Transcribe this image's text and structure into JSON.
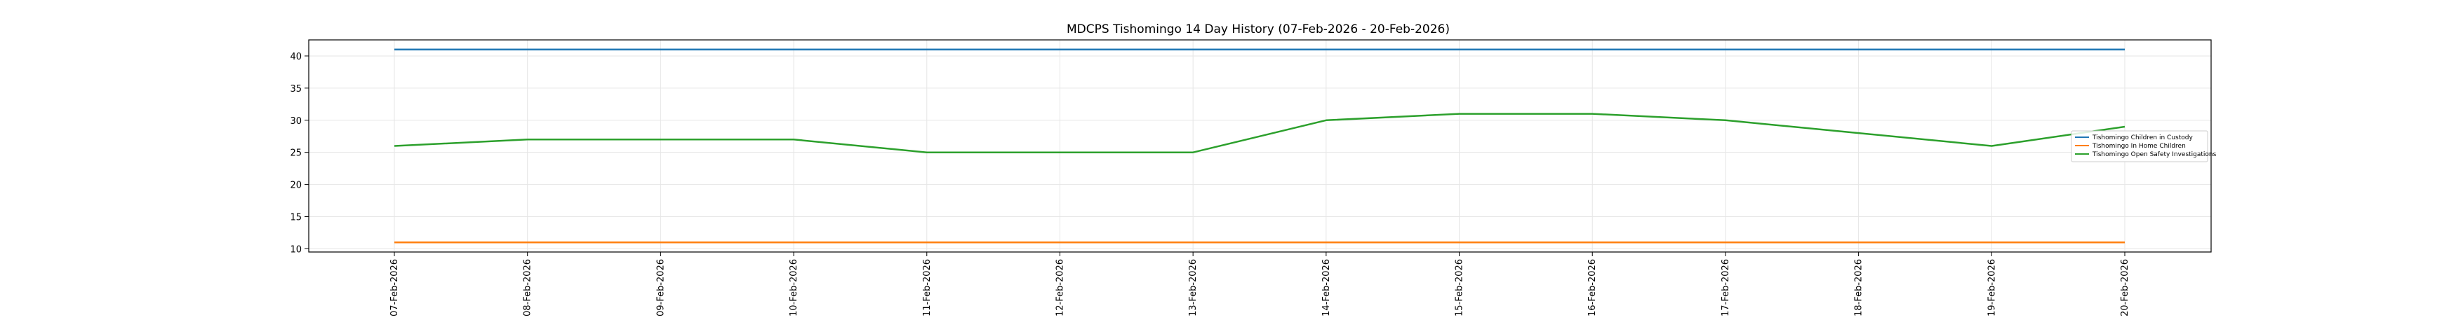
{
  "chart_data": {
    "type": "line",
    "title": "MDCPS Tishomingo 14 Day History (07-Feb-2026 - 20-Feb-2026)",
    "xlabel": "",
    "ylabel": "",
    "categories": [
      "07-Feb-2026",
      "08-Feb-2026",
      "09-Feb-2026",
      "10-Feb-2026",
      "11-Feb-2026",
      "12-Feb-2026",
      "13-Feb-2026",
      "14-Feb-2026",
      "15-Feb-2026",
      "16-Feb-2026",
      "17-Feb-2026",
      "18-Feb-2026",
      "19-Feb-2026",
      "20-Feb-2026"
    ],
    "ylim": [
      9.5,
      42.5
    ],
    "yticks": [
      10,
      15,
      20,
      25,
      30,
      35,
      40
    ],
    "grid": true,
    "legend_position": "right",
    "series": [
      {
        "name": "Tishomingo Children in Custody",
        "color": "#1f77b4",
        "values": [
          41,
          41,
          41,
          41,
          41,
          41,
          41,
          41,
          41,
          41,
          41,
          41,
          41,
          41
        ]
      },
      {
        "name": "Tishomingo In Home Children",
        "color": "#ff7f0e",
        "values": [
          11,
          11,
          11,
          11,
          11,
          11,
          11,
          11,
          11,
          11,
          11,
          11,
          11,
          11
        ]
      },
      {
        "name": "Tishomingo Open Safety Investigations",
        "color": "#2ca02c",
        "values": [
          26,
          27,
          27,
          27,
          25,
          25,
          25,
          30,
          31,
          31,
          30,
          28,
          26,
          29
        ]
      }
    ]
  }
}
